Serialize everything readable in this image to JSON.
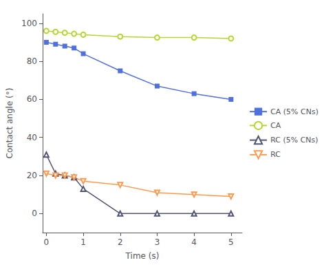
{
  "chart_data": {
    "type": "line",
    "xlabel": "Time (s)",
    "ylabel": "Contact angle (°)",
    "xlim": [
      -0.1,
      5.3
    ],
    "ylim": [
      -10,
      105
    ],
    "xticks": [
      0,
      1,
      2,
      3,
      4,
      5
    ],
    "yticks": [
      0,
      20,
      40,
      60,
      80,
      100
    ],
    "grid": false,
    "legend": "right",
    "series": [
      {
        "name": "CA (5% CNs)",
        "marker": "square",
        "x": [
          0,
          0.25,
          0.5,
          0.75,
          1.0,
          2.0,
          3.0,
          4.0,
          5.0
        ],
        "values": [
          90,
          89,
          88,
          87,
          84,
          75,
          67,
          63,
          60
        ]
      },
      {
        "name": "CA",
        "marker": "circle",
        "x": [
          0,
          0.25,
          0.5,
          0.75,
          1.0,
          2.0,
          3.0,
          4.0,
          5.0
        ],
        "values": [
          96,
          95.5,
          95,
          94.5,
          94,
          93,
          92.5,
          92.5,
          92
        ]
      },
      {
        "name": "RC (5% CNs)",
        "marker": "triangle-up",
        "x": [
          0,
          0.25,
          0.5,
          0.75,
          1.0,
          2.0,
          3.0,
          4.0,
          5.0
        ],
        "values": [
          31,
          21,
          20,
          19,
          13,
          0,
          0,
          0,
          0
        ]
      },
      {
        "name": "RC",
        "marker": "triangle-down",
        "x": [
          0,
          0.25,
          0.5,
          0.75,
          1.0,
          2.0,
          3.0,
          4.0,
          5.0
        ],
        "values": [
          21,
          20,
          20,
          19,
          17,
          15,
          11,
          10,
          9
        ]
      }
    ]
  }
}
